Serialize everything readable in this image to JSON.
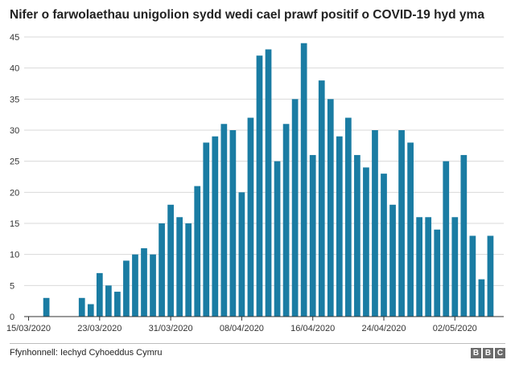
{
  "title": "Nifer o farwolaethau unigolion sydd wedi cael prawf positif o COVID-19 hyd yma",
  "source": "Ffynhonnell: Iechyd Cyhoeddus Cymru",
  "logo": [
    "B",
    "B",
    "C"
  ],
  "colors": {
    "bar": "#1a7ca3",
    "grid": "#d9d9d9",
    "axis": "#333333"
  },
  "chart_data": {
    "type": "bar",
    "title": "Nifer o farwolaethau unigolion sydd wedi cael prawf positif o COVID-19 hyd yma",
    "start_date": "15/03/2020",
    "categories": [
      "15/03/2020",
      "16/03/2020",
      "17/03/2020",
      "18/03/2020",
      "19/03/2020",
      "20/03/2020",
      "21/03/2020",
      "22/03/2020",
      "23/03/2020",
      "24/03/2020",
      "25/03/2020",
      "26/03/2020",
      "27/03/2020",
      "28/03/2020",
      "29/03/2020",
      "30/03/2020",
      "31/03/2020",
      "01/04/2020",
      "02/04/2020",
      "03/04/2020",
      "04/04/2020",
      "05/04/2020",
      "06/04/2020",
      "07/04/2020",
      "08/04/2020",
      "09/04/2020",
      "10/04/2020",
      "11/04/2020",
      "12/04/2020",
      "13/04/2020",
      "14/04/2020",
      "15/04/2020",
      "16/04/2020",
      "17/04/2020",
      "18/04/2020",
      "19/04/2020",
      "20/04/2020",
      "21/04/2020",
      "22/04/2020",
      "23/04/2020",
      "24/04/2020",
      "25/04/2020",
      "26/04/2020",
      "27/04/2020",
      "28/04/2020",
      "29/04/2020",
      "30/04/2020",
      "01/05/2020",
      "02/05/2020",
      "03/05/2020",
      "04/05/2020",
      "05/05/2020",
      "06/05/2020",
      "07/05/2020"
    ],
    "values": [
      0,
      0,
      3,
      0,
      0,
      0,
      3,
      2,
      7,
      5,
      4,
      9,
      10,
      11,
      10,
      15,
      18,
      16,
      15,
      21,
      28,
      29,
      31,
      30,
      20,
      32,
      42,
      43,
      25,
      31,
      35,
      44,
      26,
      38,
      35,
      29,
      32,
      26,
      24,
      30,
      23,
      18,
      30,
      28,
      16,
      16,
      14,
      25,
      16,
      26,
      13,
      6,
      13,
      0
    ],
    "x_tick_labels": [
      "15/03/2020",
      "23/03/2020",
      "31/03/2020",
      "08/04/2020",
      "16/04/2020",
      "24/04/2020",
      "02/05/2020"
    ],
    "x_tick_index": [
      0,
      8,
      16,
      24,
      32,
      40,
      48
    ],
    "y_ticks": [
      0,
      5,
      10,
      15,
      20,
      25,
      30,
      35,
      40,
      45
    ],
    "ylim": [
      0,
      45
    ],
    "xlabel": "",
    "ylabel": "",
    "grid": true
  }
}
